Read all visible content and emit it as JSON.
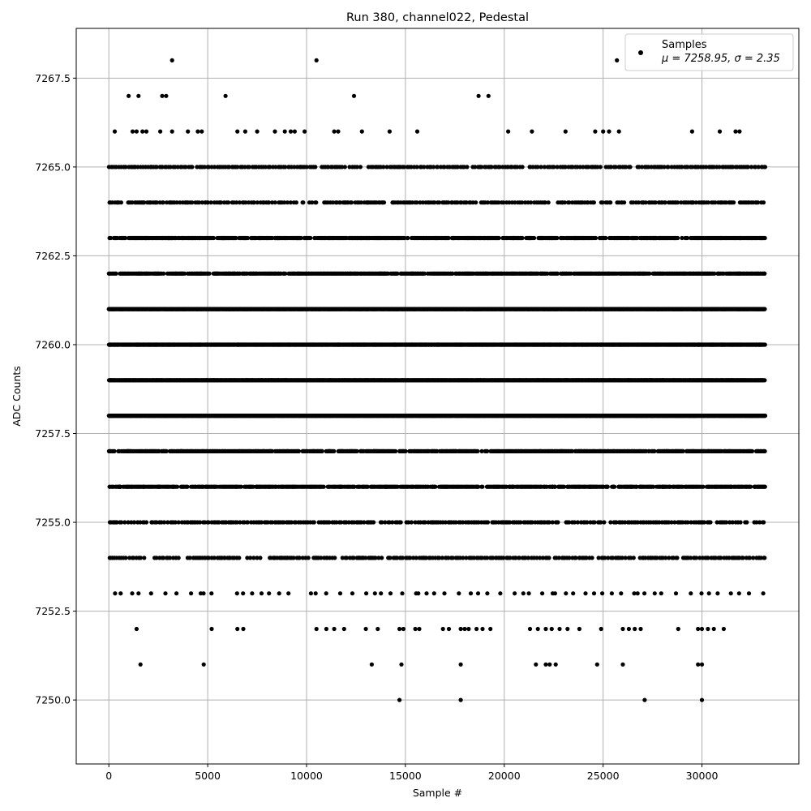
{
  "chart_data": {
    "type": "scatter",
    "title": "Run 380, channel022, Pedestal",
    "xlabel": "Sample #",
    "ylabel": "ADC Counts",
    "xlim": [
      -1650,
      34900
    ],
    "ylim": [
      7248.2,
      7268.9
    ],
    "xticks": [
      0,
      5000,
      10000,
      15000,
      20000,
      25000,
      30000
    ],
    "yticks": [
      7250.0,
      7252.5,
      7255.0,
      7257.5,
      7260.0,
      7262.5,
      7265.0,
      7267.5
    ],
    "xtick_labels": [
      "0",
      "5000",
      "10000",
      "15000",
      "20000",
      "25000",
      "30000"
    ],
    "ytick_labels": [
      "7250.0",
      "7252.5",
      "7255.0",
      "7257.5",
      "7260.0",
      "7262.5",
      "7265.0",
      "7267.5"
    ],
    "grid": true,
    "legend": {
      "placement": "upper right",
      "entry": "Samples",
      "stats": "μ = 7258.95, σ = 2.35"
    },
    "series": [
      {
        "marker": "circle",
        "color": "#000000",
        "mean": 7258.95,
        "sigma": 2.35,
        "sample_range": [
          0,
          33200
        ],
        "outliers": [
          {
            "x": 3200,
            "y": 7268
          },
          {
            "x": 10500,
            "y": 7268
          },
          {
            "x": 25700,
            "y": 7268
          },
          {
            "x": 1000,
            "y": 7267
          },
          {
            "x": 1500,
            "y": 7267
          },
          {
            "x": 2700,
            "y": 7267
          },
          {
            "x": 2900,
            "y": 7267
          },
          {
            "x": 5900,
            "y": 7267
          },
          {
            "x": 12400,
            "y": 7267
          },
          {
            "x": 18700,
            "y": 7267
          },
          {
            "x": 19200,
            "y": 7267
          },
          {
            "x": 14700,
            "y": 7250
          },
          {
            "x": 17800,
            "y": 7250
          },
          {
            "x": 27100,
            "y": 7250
          },
          {
            "x": 30000,
            "y": 7250
          },
          {
            "x": 1600,
            "y": 7251
          },
          {
            "x": 4800,
            "y": 7251
          },
          {
            "x": 13300,
            "y": 7251
          },
          {
            "x": 14800,
            "y": 7251
          },
          {
            "x": 17800,
            "y": 7251
          },
          {
            "x": 21600,
            "y": 7251
          },
          {
            "x": 22100,
            "y": 7251
          },
          {
            "x": 22300,
            "y": 7251
          },
          {
            "x": 22600,
            "y": 7251
          },
          {
            "x": 24700,
            "y": 7251
          },
          {
            "x": 26000,
            "y": 7251
          },
          {
            "x": 29800,
            "y": 7251
          },
          {
            "x": 30000,
            "y": 7251
          }
        ],
        "levels": [
          {
            "y": 7252,
            "density": "sparse",
            "points": [
              1400,
              5200,
              6500,
              6800,
              10500,
              11000,
              11400,
              11900,
              13000,
              13600,
              14700,
              14900,
              15500,
              15700,
              16900,
              17200,
              17800,
              18000,
              18200,
              18600,
              18900,
              19300,
              21300,
              21700,
              22100,
              22400,
              22800,
              23200,
              23800,
              24900,
              26000,
              26300,
              26600,
              26900,
              28800,
              29800,
              30000,
              30300,
              30600,
              31100
            ]
          },
          {
            "y": 7253,
            "density": "sparse"
          },
          {
            "y": 7254,
            "density": "medium"
          },
          {
            "y": 7255,
            "density": "medium"
          },
          {
            "y": 7256,
            "density": "dense"
          },
          {
            "y": 7257,
            "density": "dense"
          },
          {
            "y": 7258,
            "density": "very-dense"
          },
          {
            "y": 7259,
            "density": "very-dense"
          },
          {
            "y": 7260,
            "density": "very-dense"
          },
          {
            "y": 7261,
            "density": "very-dense"
          },
          {
            "y": 7262,
            "density": "dense"
          },
          {
            "y": 7263,
            "density": "dense"
          },
          {
            "y": 7264,
            "density": "medium"
          },
          {
            "y": 7265,
            "density": "medium"
          },
          {
            "y": 7266,
            "density": "sparse",
            "points": [
              300,
              1200,
              1400,
              1700,
              1900,
              2600,
              3200,
              4000,
              4500,
              4700,
              6500,
              6900,
              7500,
              8400,
              8900,
              9200,
              9400,
              9900,
              11400,
              11600,
              12800,
              14200,
              15600,
              20200,
              21400,
              23100,
              24600,
              25000,
              25300,
              25800,
              29500,
              30900,
              31700,
              31900
            ]
          }
        ]
      }
    ]
  }
}
